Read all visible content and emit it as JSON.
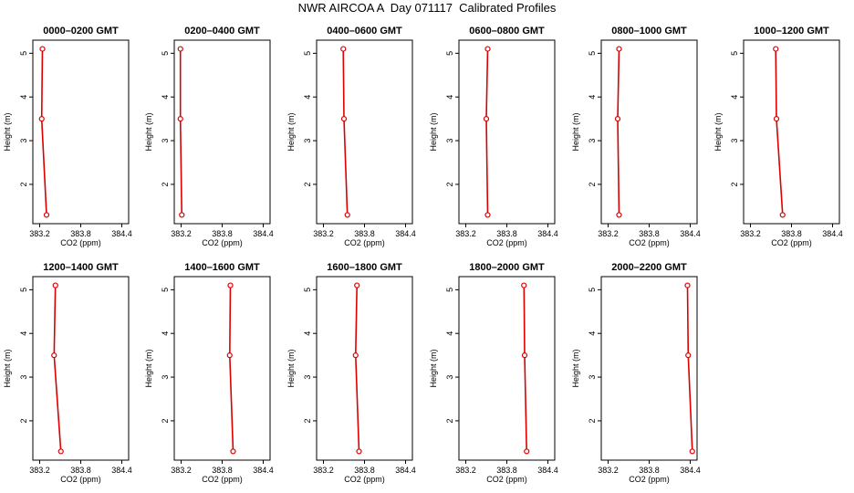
{
  "title": "NWR AIRCOA A  Day 071117  Calibrated Profiles",
  "colors": {
    "series": "#dd0000",
    "axis": "#000000"
  },
  "chart_data": [
    {
      "type": "line",
      "title": "0000–0200 GMT",
      "xlabel": "CO2 (ppm)",
      "ylabel": "Height (m)",
      "xlim": [
        383.1,
        384.5
      ],
      "ylim": [
        1.1,
        5.3
      ],
      "x_ticks": [
        "383.2",
        "383.8",
        "384.4"
      ],
      "y_ticks": [
        "2",
        "3",
        "4",
        "5"
      ],
      "series": [
        {
          "points": [
            {
              "x": 383.24,
              "y": 5.1
            },
            {
              "x": 383.23,
              "y": 3.5
            },
            {
              "x": 383.3,
              "y": 1.3
            }
          ]
        }
      ]
    },
    {
      "type": "line",
      "title": "0200–0400 GMT",
      "xlabel": "CO2 (ppm)",
      "ylabel": "Height (m)",
      "xlim": [
        383.1,
        384.5
      ],
      "ylim": [
        1.1,
        5.3
      ],
      "x_ticks": [
        "383.2",
        "383.8",
        "384.4"
      ],
      "y_ticks": [
        "2",
        "3",
        "4",
        "5"
      ],
      "series": [
        {
          "points": [
            {
              "x": 383.19,
              "y": 5.1
            },
            {
              "x": 383.19,
              "y": 3.5
            },
            {
              "x": 383.21,
              "y": 1.3
            }
          ]
        }
      ]
    },
    {
      "type": "line",
      "title": "0400–0600 GMT",
      "xlabel": "CO2 (ppm)",
      "ylabel": "Height (m)",
      "xlim": [
        383.1,
        384.5
      ],
      "ylim": [
        1.1,
        5.3
      ],
      "x_ticks": [
        "383.2",
        "383.8",
        "384.4"
      ],
      "y_ticks": [
        "2",
        "3",
        "4",
        "5"
      ],
      "series": [
        {
          "points": [
            {
              "x": 383.49,
              "y": 5.1
            },
            {
              "x": 383.5,
              "y": 3.5
            },
            {
              "x": 383.55,
              "y": 1.3
            }
          ]
        }
      ]
    },
    {
      "type": "line",
      "title": "0600–0800 GMT",
      "xlabel": "CO2 (ppm)",
      "ylabel": "Height (m)",
      "xlim": [
        383.1,
        384.5
      ],
      "ylim": [
        1.1,
        5.3
      ],
      "x_ticks": [
        "383.2",
        "383.8",
        "384.4"
      ],
      "y_ticks": [
        "2",
        "3",
        "4",
        "5"
      ],
      "series": [
        {
          "points": [
            {
              "x": 383.52,
              "y": 5.1
            },
            {
              "x": 383.5,
              "y": 3.5
            },
            {
              "x": 383.52,
              "y": 1.3
            }
          ]
        }
      ]
    },
    {
      "type": "line",
      "title": "0800–1000 GMT",
      "xlabel": "CO2 (ppm)",
      "ylabel": "Height (m)",
      "xlim": [
        383.1,
        384.5
      ],
      "ylim": [
        1.1,
        5.3
      ],
      "x_ticks": [
        "383.2",
        "383.8",
        "384.4"
      ],
      "y_ticks": [
        "2",
        "3",
        "4",
        "5"
      ],
      "series": [
        {
          "points": [
            {
              "x": 383.36,
              "y": 5.1
            },
            {
              "x": 383.34,
              "y": 3.5
            },
            {
              "x": 383.36,
              "y": 1.3
            }
          ]
        }
      ]
    },
    {
      "type": "line",
      "title": "1000–1200 GMT",
      "xlabel": "CO2 (ppm)",
      "ylabel": "Height (m)",
      "xlim": [
        383.1,
        384.5
      ],
      "ylim": [
        1.1,
        5.3
      ],
      "x_ticks": [
        "383.2",
        "383.8",
        "384.4"
      ],
      "y_ticks": [
        "2",
        "3",
        "4",
        "5"
      ],
      "series": [
        {
          "points": [
            {
              "x": 383.57,
              "y": 5.1
            },
            {
              "x": 383.58,
              "y": 3.5
            },
            {
              "x": 383.67,
              "y": 1.3
            }
          ]
        }
      ]
    },
    {
      "type": "line",
      "title": "1200–1400 GMT",
      "xlabel": "CO2 (ppm)",
      "ylabel": "Height (m)",
      "xlim": [
        383.1,
        384.5
      ],
      "ylim": [
        1.1,
        5.3
      ],
      "x_ticks": [
        "383.2",
        "383.8",
        "384.4"
      ],
      "y_ticks": [
        "2",
        "3",
        "4",
        "5"
      ],
      "series": [
        {
          "points": [
            {
              "x": 383.43,
              "y": 5.1
            },
            {
              "x": 383.41,
              "y": 3.5
            },
            {
              "x": 383.51,
              "y": 1.3
            }
          ]
        }
      ]
    },
    {
      "type": "line",
      "title": "1400–1600 GMT",
      "xlabel": "CO2 (ppm)",
      "ylabel": "Height (m)",
      "xlim": [
        383.1,
        384.5
      ],
      "ylim": [
        1.1,
        5.3
      ],
      "x_ticks": [
        "383.2",
        "383.8",
        "384.4"
      ],
      "y_ticks": [
        "2",
        "3",
        "4",
        "5"
      ],
      "series": [
        {
          "points": [
            {
              "x": 383.92,
              "y": 5.1
            },
            {
              "x": 383.91,
              "y": 3.5
            },
            {
              "x": 383.96,
              "y": 1.3
            }
          ]
        }
      ]
    },
    {
      "type": "line",
      "title": "1600–1800 GMT",
      "xlabel": "CO2 (ppm)",
      "ylabel": "Height (m)",
      "xlim": [
        383.1,
        384.5
      ],
      "ylim": [
        1.1,
        5.3
      ],
      "x_ticks": [
        "383.2",
        "383.8",
        "384.4"
      ],
      "y_ticks": [
        "2",
        "3",
        "4",
        "5"
      ],
      "series": [
        {
          "points": [
            {
              "x": 383.69,
              "y": 5.1
            },
            {
              "x": 383.67,
              "y": 3.5
            },
            {
              "x": 383.72,
              "y": 1.3
            }
          ]
        }
      ]
    },
    {
      "type": "line",
      "title": "1800–2000 GMT",
      "xlabel": "CO2 (ppm)",
      "ylabel": "Height (m)",
      "xlim": [
        383.1,
        384.5
      ],
      "ylim": [
        1.1,
        5.3
      ],
      "x_ticks": [
        "383.2",
        "383.8",
        "384.4"
      ],
      "y_ticks": [
        "2",
        "3",
        "4",
        "5"
      ],
      "series": [
        {
          "points": [
            {
              "x": 384.05,
              "y": 5.1
            },
            {
              "x": 384.06,
              "y": 3.5
            },
            {
              "x": 384.09,
              "y": 1.3
            }
          ]
        }
      ]
    },
    {
      "type": "line",
      "title": "2000–2200 GMT",
      "xlabel": "CO2 (ppm)",
      "ylabel": "Height (m)",
      "xlim": [
        383.1,
        384.5
      ],
      "ylim": [
        1.1,
        5.3
      ],
      "x_ticks": [
        "383.2",
        "383.8",
        "384.4"
      ],
      "y_ticks": [
        "2",
        "3",
        "4",
        "5"
      ],
      "series": [
        {
          "points": [
            {
              "x": 384.36,
              "y": 5.1
            },
            {
              "x": 384.37,
              "y": 3.5
            },
            {
              "x": 384.43,
              "y": 1.3
            }
          ]
        }
      ]
    }
  ]
}
